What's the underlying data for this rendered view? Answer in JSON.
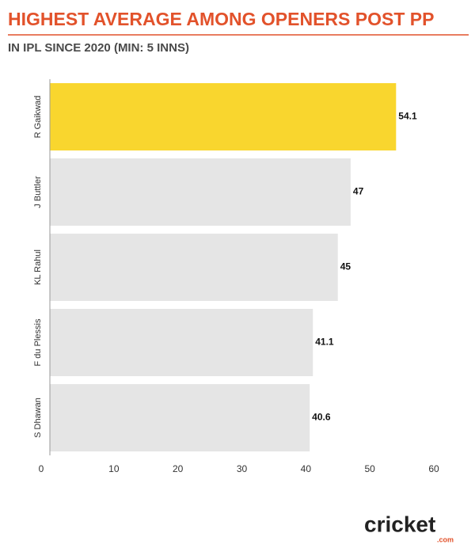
{
  "chart_data": {
    "type": "barh",
    "title": "HIGHEST AVERAGE AMONG OPENERS POST PP",
    "subtitle": "IN IPL SINCE 2020 (MIN: 5 INNS)",
    "categories": [
      "R Gaikwad",
      "J Buttler",
      "KL Rahul",
      "F du Plessis",
      "S Dhawan"
    ],
    "values": [
      54.1,
      47,
      45,
      41.1,
      40.6
    ],
    "colors": [
      "#f9d62e",
      "#e5e5e5",
      "#e5e5e5",
      "#e5e5e5",
      "#e5e5e5"
    ],
    "xlim": [
      0,
      60
    ],
    "xticks": [
      0,
      10,
      20,
      30,
      40,
      50,
      60
    ]
  },
  "logo": {
    "text": "cricket",
    "suffix": ".com"
  }
}
